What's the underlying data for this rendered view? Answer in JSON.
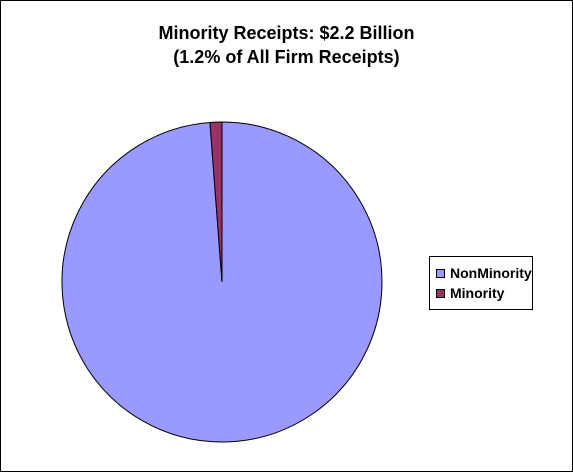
{
  "chart_data": {
    "type": "pie",
    "title": "Minority Receipts:  $2.2 Billion",
    "subtitle": "(1.2% of All Firm Receipts)",
    "categories": [
      "NonMinority",
      "Minority"
    ],
    "values": [
      98.8,
      1.2
    ],
    "colors": [
      "#9999ff",
      "#993366"
    ],
    "legend_position": "right"
  }
}
